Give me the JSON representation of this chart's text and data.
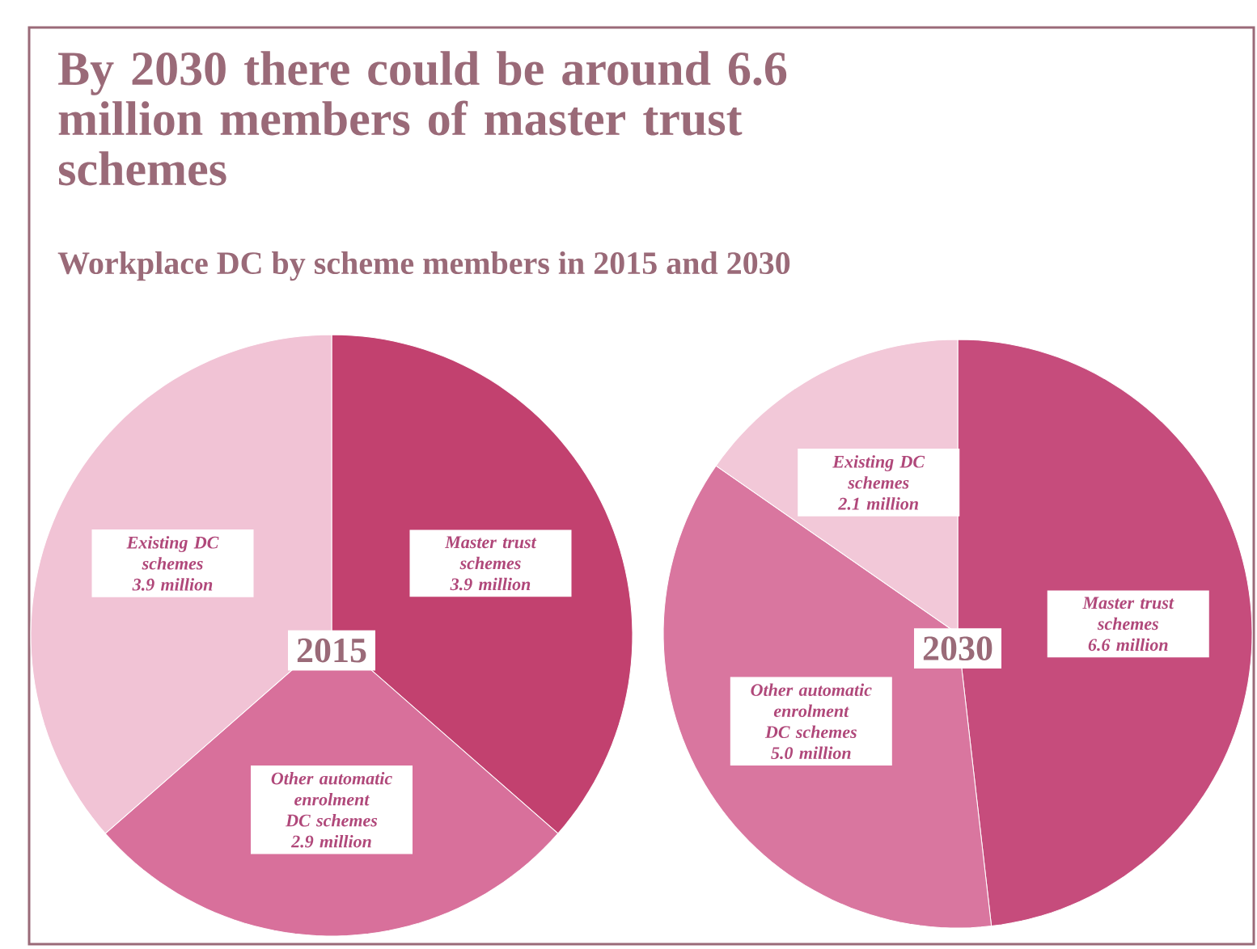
{
  "chart_data": [
    {
      "type": "pie",
      "title": "By 2030 there could be around 6.6 million members of master trust schemes",
      "subtitle": "Workplace DC by scheme members in 2015 and 2030",
      "categories": [
        "Master trust schemes",
        "Other automatic enrolment DC schemes",
        "Existing DC schemes"
      ],
      "values": [
        3.9,
        2.9,
        3.9
      ],
      "value_labels": [
        "3.9 million",
        "2.9 million",
        "3.9 million"
      ],
      "colors": [
        "#c2416f",
        "#d8709b",
        "#f1c3d5"
      ],
      "annotations": [
        "2015"
      ]
    },
    {
      "type": "pie",
      "categories": [
        "Master trust schemes",
        "Other automatic enrolment DC schemes",
        "Existing DC schemes"
      ],
      "values": [
        6.6,
        5.0,
        2.1
      ],
      "value_labels": [
        "6.6 million",
        "5.0 million",
        "2.1 million"
      ],
      "colors": [
        "#c64c7c",
        "#d9769f",
        "#f2c8d8"
      ],
      "annotations": [
        "2030"
      ]
    }
  ]
}
